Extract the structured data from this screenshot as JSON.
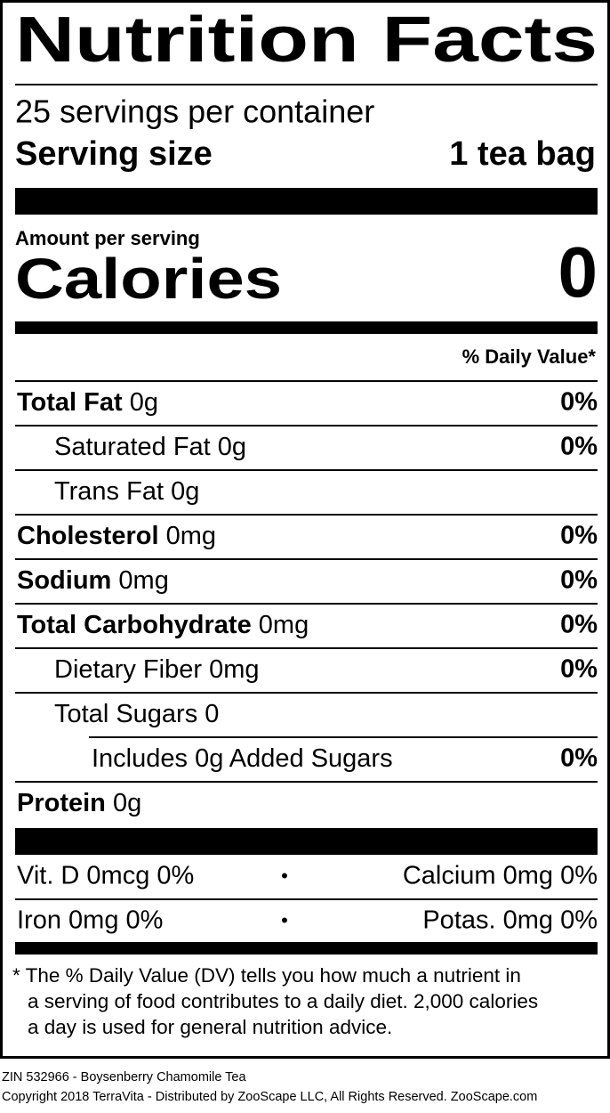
{
  "header": {
    "title": "Nutrition Facts",
    "servings": "25 servings per container",
    "serving_size_label": "Serving size",
    "serving_size_value": "1 tea bag"
  },
  "calories": {
    "amount_label": "Amount per serving",
    "label": "Calories",
    "value": "0"
  },
  "dv_header": "% Daily Value*",
  "nutrients": [
    {
      "name": "Total Fat",
      "amount": "0g",
      "dv": "0%"
    },
    {
      "name": "Saturated Fat",
      "amount": "0g",
      "dv": "0%"
    },
    {
      "name": "Trans Fat",
      "amount": "0g"
    },
    {
      "name": "Cholesterol",
      "amount": "0mg",
      "dv": "0%"
    },
    {
      "name": "Sodium",
      "amount": "0mg",
      "dv": "0%"
    },
    {
      "name": "Total Carbohydrate",
      "amount": "0mg",
      "dv": "0%"
    },
    {
      "name": "Dietary Fiber",
      "amount": "0mg",
      "dv": "0%"
    },
    {
      "name": "Total Sugars",
      "amount": "0"
    },
    {
      "name": "Includes 0g Added Sugars",
      "dv": "0%"
    },
    {
      "name": "Protein",
      "amount": "0g"
    }
  ],
  "vitamins": {
    "separator": "•",
    "rows": [
      [
        "Vit. D 0mcg 0%",
        "Calcium 0mg 0%"
      ],
      [
        "Iron 0mg 0%",
        "Potas. 0mg 0%"
      ]
    ]
  },
  "footnote": [
    "* The % Daily Value (DV) tells you how much a nutrient in",
    "a serving of food contributes to a daily diet. 2,000 calories",
    "a day is used for general nutrition advice."
  ],
  "footer": [
    "ZIN 532966 - Boysenberry Chamomile Tea",
    "Copyright 2018 TerraVita - Distributed by ZooScape LLC, All Rights Reserved. ZooScape.com"
  ]
}
